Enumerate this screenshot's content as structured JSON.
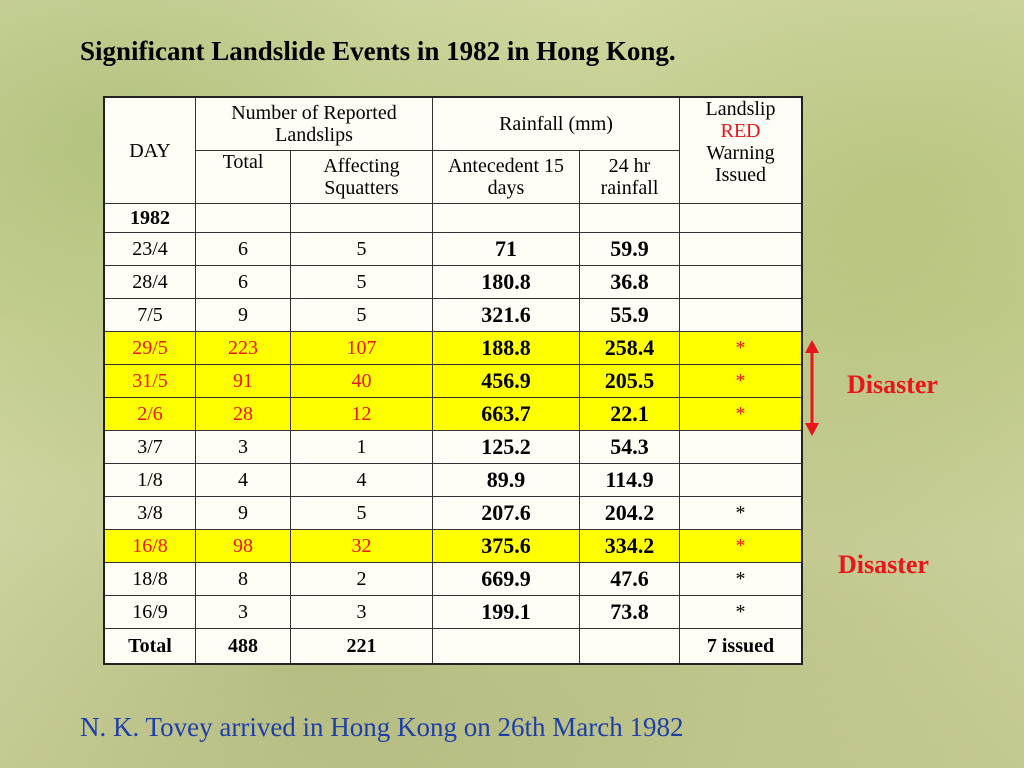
{
  "title": "Significant Landslide Events in 1982 in Hong Kong.",
  "table": {
    "headers": {
      "day": "DAY",
      "landslips_group": "Number of Reported Landslips",
      "total": "Total",
      "affecting": "Affecting Squatters",
      "rainfall_group": "Rainfall (mm)",
      "antecedent": "Antecedent 15 days",
      "rain24": "24 hr rainfall",
      "warning_line1": "Landslip",
      "warning_red": "RED",
      "warning_line3": "Warning",
      "warning_line4": "Issued"
    },
    "year_label": "1982",
    "rows": [
      {
        "day": "23/4",
        "total": "6",
        "affecting": "5",
        "antecedent": "71",
        "rain24": "59.9",
        "warning": ""
      },
      {
        "day": "28/4",
        "total": "6",
        "affecting": "5",
        "antecedent": "180.8",
        "rain24": "36.8",
        "warning": ""
      },
      {
        "day": "7/5",
        "total": "9",
        "affecting": "5",
        "antecedent": "321.6",
        "rain24": "55.9",
        "warning": ""
      },
      {
        "day": "29/5",
        "total": "223",
        "affecting": "107",
        "antecedent": "188.8",
        "rain24": "258.4",
        "warning": "*"
      },
      {
        "day": "31/5",
        "total": "91",
        "affecting": "40",
        "antecedent": "456.9",
        "rain24": "205.5",
        "warning": "*"
      },
      {
        "day": "2/6",
        "total": "28",
        "affecting": "12",
        "antecedent": "663.7",
        "rain24": "22.1",
        "warning": "*"
      },
      {
        "day": "3/7",
        "total": "3",
        "affecting": "1",
        "antecedent": "125.2",
        "rain24": "54.3",
        "warning": ""
      },
      {
        "day": "1/8",
        "total": "4",
        "affecting": "4",
        "antecedent": "89.9",
        "rain24": "114.9",
        "warning": ""
      },
      {
        "day": "3/8",
        "total": "9",
        "affecting": "5",
        "antecedent": "207.6",
        "rain24": "204.2",
        "warning": "*"
      },
      {
        "day": "16/8",
        "total": "98",
        "affecting": "32",
        "antecedent": "375.6",
        "rain24": "334.2",
        "warning": "*"
      },
      {
        "day": "18/8",
        "total": "8",
        "affecting": "2",
        "antecedent": "669.9",
        "rain24": "47.6",
        "warning": "*"
      },
      {
        "day": "16/9",
        "total": "3",
        "affecting": "3",
        "antecedent": "199.1",
        "rain24": "73.8",
        "warning": "*"
      }
    ],
    "total_row": {
      "label": "Total",
      "total": "488",
      "affecting": "221",
      "antecedent": "",
      "rain24": "",
      "warning": "7 issued"
    }
  },
  "annotations": {
    "disaster_1": "Disaster",
    "disaster_2": "Disaster"
  },
  "note": "N. K. Tovey arrived in Hong Kong on 26th March 1982",
  "colors": {
    "highlight": "#ffff00",
    "red": "#e8161a",
    "note_blue": "#1f3ea8"
  }
}
